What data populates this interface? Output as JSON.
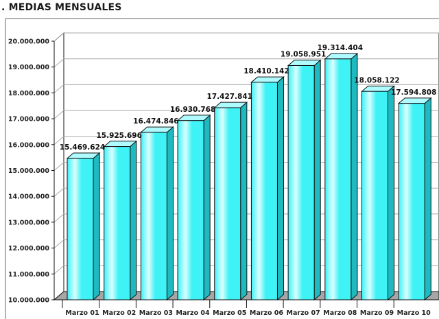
{
  "chart_data": {
    "type": "bar",
    "title": ". MEDIAS MENSUALES",
    "xlabel": "",
    "ylabel": "",
    "ylim": [
      10000000,
      20000000
    ],
    "y_tick_step": 1000000,
    "y_tick_labels": [
      "10.000.000",
      "11.000.000",
      "12.000.000",
      "13.000.000",
      "14.000.000",
      "15.000.000",
      "16.000.000",
      "17.000.000",
      "18.000.000",
      "19.000.000",
      "20.000.000"
    ],
    "categories": [
      "Marzo 01",
      "Marzo 02",
      "Marzo 03",
      "Marzo 04",
      "Marzo 05",
      "Marzo 06",
      "Marzo 07",
      "Marzo 08",
      "Marzo 09",
      "Marzo 10"
    ],
    "values": [
      15469624,
      15925696,
      16474846,
      16930768,
      17427841,
      18410142,
      19058951,
      19314404,
      18058122,
      17594808
    ],
    "value_labels": [
      "15.469.624",
      "15.925.696",
      "16.474.846",
      "16.930.768",
      "17.427.841",
      "18.410.142",
      "19.058.951",
      "19.314.404",
      "18.058.122",
      "17.594.808"
    ],
    "grid": true,
    "legend": "none",
    "colors": {
      "bar_front": "#3ff2f6",
      "bar_highlight": "#d9ffff",
      "bar_side": "#1fb9c0",
      "bar_top": "#aefcff",
      "floor": "#a6a6a6",
      "wall": "#ffffff",
      "grid": "#aaaaaa",
      "outline": "#111111"
    }
  }
}
